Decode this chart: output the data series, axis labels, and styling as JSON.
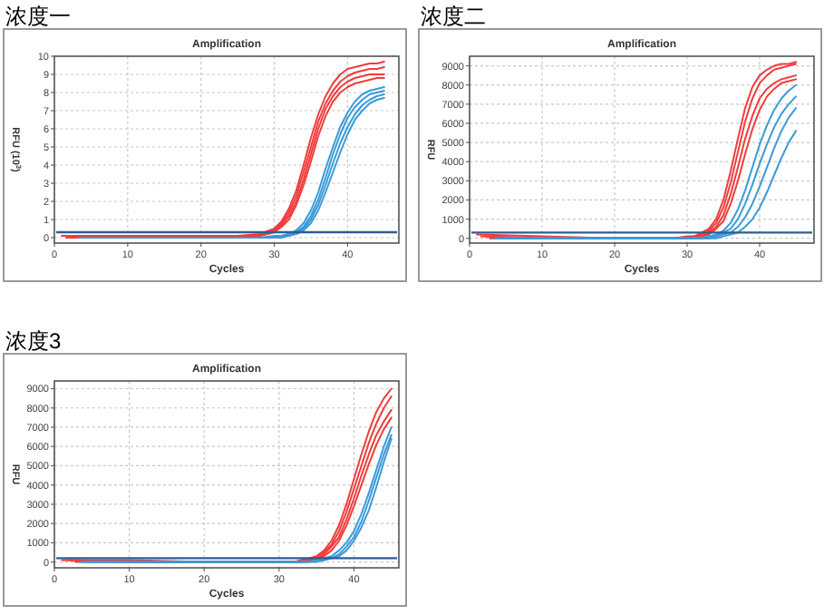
{
  "chart_data": [
    {
      "type": "line",
      "title": "浓度一",
      "subtitle": "Amplification",
      "xlabel": "Cycles",
      "ylabel": "RFU (10$^{3}$)",
      "xlim": [
        0,
        47
      ],
      "ylim": [
        -0.3,
        10
      ],
      "xticks": [
        0,
        10,
        20,
        30,
        40
      ],
      "yticks": [
        0,
        1,
        2,
        3,
        4,
        5,
        6,
        7,
        8,
        9,
        10
      ],
      "grid": true,
      "ref_lines": [
        {
          "axis": "y",
          "value": 0.3,
          "color": "#2e5c94"
        }
      ],
      "series": [
        {
          "color": "#f03c3c",
          "x": [
            1,
            10,
            20,
            25,
            28,
            30,
            31,
            32,
            33,
            34,
            35,
            36,
            37,
            38,
            39,
            40,
            41,
            42,
            43,
            44,
            45
          ],
          "values": [
            0.1,
            0.1,
            0.1,
            0.1,
            0.2,
            0.5,
            0.9,
            1.6,
            2.6,
            4.0,
            5.5,
            6.8,
            7.8,
            8.5,
            9.0,
            9.3,
            9.4,
            9.5,
            9.6,
            9.6,
            9.7
          ]
        },
        {
          "color": "#f03c3c",
          "x": [
            1.6,
            10,
            20,
            25,
            28,
            30,
            31,
            32,
            33,
            34,
            35,
            36,
            37,
            38,
            39,
            40,
            41,
            42,
            43,
            44,
            45
          ],
          "values": [
            0,
            0,
            0,
            0.1,
            0.1,
            0.4,
            0.8,
            1.4,
            2.3,
            3.6,
            5.0,
            6.4,
            7.4,
            8.1,
            8.6,
            8.9,
            9.1,
            9.2,
            9.3,
            9.3,
            9.4
          ]
        },
        {
          "color": "#f03c3c",
          "x": [
            2.2,
            10,
            20,
            25,
            28,
            30,
            31,
            32,
            33,
            34,
            35,
            36,
            37,
            38,
            39,
            40,
            41,
            42,
            43,
            44,
            45
          ],
          "values": [
            0,
            0,
            0,
            0,
            0.1,
            0.3,
            0.7,
            1.2,
            2.0,
            3.2,
            4.6,
            6.0,
            7.1,
            7.8,
            8.3,
            8.6,
            8.8,
            8.9,
            9.0,
            9.0,
            9.0
          ]
        },
        {
          "color": "#f03c3c",
          "x": [
            2.8,
            10,
            20,
            25,
            28,
            30,
            31,
            32,
            33,
            34,
            35,
            36,
            37,
            38,
            39,
            40,
            41,
            42,
            43,
            44,
            45
          ],
          "values": [
            0,
            0,
            0,
            0,
            0.1,
            0.3,
            0.6,
            1.0,
            1.8,
            2.9,
            4.2,
            5.6,
            6.7,
            7.5,
            8.0,
            8.3,
            8.5,
            8.6,
            8.7,
            8.8,
            8.8
          ]
        },
        {
          "color": "#3a9ad9",
          "x": [
            3.4,
            10,
            20,
            25,
            28,
            30,
            31,
            32,
            33,
            34,
            35,
            36,
            37,
            38,
            39,
            40,
            41,
            42,
            43,
            44,
            45
          ],
          "values": [
            0,
            0,
            0,
            0,
            0,
            0.1,
            0.1,
            0.2,
            0.4,
            0.8,
            1.5,
            2.5,
            3.8,
            5.0,
            6.1,
            6.9,
            7.5,
            7.9,
            8.1,
            8.2,
            8.3
          ]
        },
        {
          "color": "#3a9ad9",
          "x": [
            4,
            10,
            20,
            25,
            28,
            30,
            31,
            32,
            33,
            34,
            35,
            36,
            37,
            38,
            39,
            40,
            41,
            42,
            43,
            44,
            45
          ],
          "values": [
            0,
            0,
            0,
            0,
            0,
            0,
            0.1,
            0.2,
            0.3,
            0.6,
            1.2,
            2.1,
            3.3,
            4.6,
            5.7,
            6.6,
            7.2,
            7.6,
            7.9,
            8.0,
            8.1
          ]
        },
        {
          "color": "#3a9ad9",
          "x": [
            4.6,
            10,
            20,
            25,
            28,
            30,
            31,
            32,
            33,
            34,
            35,
            36,
            37,
            38,
            39,
            40,
            41,
            42,
            43,
            44,
            45
          ],
          "values": [
            0,
            0,
            0,
            0,
            0,
            0,
            0.1,
            0.1,
            0.3,
            0.5,
            1.0,
            1.8,
            2.9,
            4.1,
            5.2,
            6.1,
            6.8,
            7.3,
            7.6,
            7.8,
            7.9
          ]
        },
        {
          "color": "#3a9ad9",
          "x": [
            5.2,
            10,
            20,
            25,
            28,
            30,
            31,
            32,
            33,
            34,
            35,
            36,
            37,
            38,
            39,
            40,
            41,
            42,
            43,
            44,
            45
          ],
          "values": [
            0,
            0,
            0,
            0,
            0,
            0,
            0,
            0.1,
            0.2,
            0.4,
            0.8,
            1.5,
            2.5,
            3.6,
            4.7,
            5.7,
            6.5,
            7.0,
            7.4,
            7.6,
            7.7
          ]
        }
      ]
    },
    {
      "type": "line",
      "title": "浓度二",
      "subtitle": "Amplification",
      "xlabel": "Cycles",
      "ylabel": "RFU",
      "xlim": [
        0,
        47.5
      ],
      "ylim": [
        -250,
        9500
      ],
      "xticks": [
        0,
        10,
        20,
        30,
        40
      ],
      "yticks": [
        0,
        1000,
        2000,
        3000,
        4000,
        5000,
        6000,
        7000,
        8000,
        9000
      ],
      "grid": true,
      "ref_lines": [
        {
          "axis": "y",
          "value": 300,
          "color": "#2e5c94"
        }
      ],
      "series": [
        {
          "color": "#f03c3c",
          "x": [
            1,
            10,
            20,
            25,
            28,
            30,
            31,
            32,
            33,
            34,
            35,
            36,
            37,
            38,
            39,
            40,
            41,
            42,
            43,
            44,
            45
          ],
          "values": [
            200,
            100,
            0,
            0,
            0,
            100,
            100,
            300,
            500,
            1000,
            2000,
            3500,
            5200,
            6800,
            7900,
            8500,
            8800,
            9000,
            9100,
            9100,
            9200
          ]
        },
        {
          "color": "#f03c3c",
          "x": [
            1.6,
            10,
            20,
            25,
            28,
            30,
            31,
            32,
            33,
            34,
            35,
            36,
            37,
            38,
            39,
            40,
            41,
            42,
            43,
            44,
            45
          ],
          "values": [
            100,
            0,
            0,
            0,
            0,
            0,
            100,
            200,
            400,
            800,
            1600,
            2900,
            4500,
            6100,
            7300,
            8100,
            8500,
            8800,
            8900,
            9000,
            9100
          ]
        },
        {
          "color": "#f03c3c",
          "x": [
            2.2,
            10,
            20,
            25,
            28,
            30,
            31,
            32,
            33,
            34,
            35,
            36,
            37,
            38,
            39,
            40,
            41,
            42,
            43,
            44,
            45
          ],
          "values": [
            100,
            0,
            0,
            0,
            0,
            0,
            100,
            100,
            300,
            600,
            1200,
            2300,
            3700,
            5200,
            6400,
            7300,
            7800,
            8100,
            8300,
            8400,
            8500
          ]
        },
        {
          "color": "#f03c3c",
          "x": [
            2.8,
            10,
            20,
            25,
            28,
            30,
            31,
            32,
            33,
            34,
            35,
            36,
            37,
            38,
            39,
            40,
            41,
            42,
            43,
            44,
            45
          ],
          "values": [
            0,
            0,
            0,
            0,
            0,
            0,
            0,
            100,
            200,
            500,
            900,
            1800,
            3000,
            4400,
            5700,
            6700,
            7400,
            7800,
            8100,
            8200,
            8300
          ]
        },
        {
          "color": "#3a9ad9",
          "x": [
            3.4,
            10,
            20,
            25,
            28,
            30,
            31,
            32,
            33,
            34,
            35,
            36,
            37,
            38,
            39,
            40,
            41,
            42,
            43,
            44,
            45
          ],
          "values": [
            0,
            0,
            0,
            0,
            0,
            0,
            0,
            0,
            100,
            200,
            400,
            800,
            1500,
            2500,
            3700,
            4900,
            5900,
            6700,
            7300,
            7700,
            8000
          ]
        },
        {
          "color": "#3a9ad9",
          "x": [
            4,
            10,
            20,
            25,
            28,
            30,
            31,
            32,
            33,
            34,
            35,
            36,
            37,
            38,
            39,
            40,
            41,
            42,
            43,
            44,
            45
          ],
          "values": [
            0,
            0,
            0,
            0,
            0,
            0,
            0,
            0,
            100,
            100,
            300,
            500,
            1000,
            1800,
            2800,
            3900,
            4900,
            5800,
            6500,
            7000,
            7400
          ]
        },
        {
          "color": "#3a9ad9",
          "x": [
            4.6,
            10,
            20,
            25,
            28,
            30,
            31,
            32,
            33,
            34,
            35,
            36,
            37,
            38,
            39,
            40,
            41,
            42,
            43,
            44,
            45
          ],
          "values": [
            0,
            0,
            0,
            0,
            0,
            0,
            0,
            0,
            0,
            100,
            200,
            300,
            600,
            1100,
            1800,
            2700,
            3700,
            4700,
            5600,
            6300,
            6800
          ]
        },
        {
          "color": "#3a9ad9",
          "x": [
            5.2,
            10,
            20,
            25,
            28,
            30,
            31,
            32,
            33,
            34,
            35,
            36,
            37,
            38,
            39,
            40,
            41,
            42,
            43,
            44,
            45
          ],
          "values": [
            0,
            0,
            0,
            0,
            0,
            0,
            0,
            0,
            0,
            0,
            100,
            200,
            300,
            600,
            1000,
            1600,
            2400,
            3300,
            4200,
            5000,
            5600
          ]
        }
      ]
    },
    {
      "type": "line",
      "title": "浓度3",
      "subtitle": "Amplification",
      "xlabel": "Cycles",
      "ylabel": "RFU",
      "xlim": [
        0,
        46
      ],
      "ylim": [
        -300,
        9400
      ],
      "xticks": [
        0,
        10,
        20,
        30,
        40
      ],
      "yticks": [
        0,
        1000,
        2000,
        3000,
        4000,
        5000,
        6000,
        7000,
        8000,
        9000
      ],
      "grid": true,
      "ref_lines": [
        {
          "axis": "y",
          "value": 200,
          "color": "#2e5c94"
        }
      ],
      "series": [
        {
          "color": "#f03c3c",
          "x": [
            1,
            10,
            20,
            25,
            28,
            30,
            31,
            32,
            33,
            34,
            35,
            36,
            37,
            38,
            39,
            40,
            41,
            42,
            43,
            44,
            45
          ],
          "values": [
            100,
            100,
            0,
            0,
            0,
            0,
            0,
            0,
            100,
            200,
            300,
            600,
            1100,
            1900,
            3000,
            4300,
            5600,
            6800,
            7800,
            8500,
            9000
          ]
        },
        {
          "color": "#f03c3c",
          "x": [
            1.6,
            10,
            20,
            25,
            28,
            30,
            31,
            32,
            33,
            34,
            35,
            36,
            37,
            38,
            39,
            40,
            41,
            42,
            43,
            44,
            45
          ],
          "values": [
            100,
            0,
            0,
            0,
            0,
            0,
            0,
            0,
            100,
            100,
            200,
            500,
            900,
            1600,
            2600,
            3800,
            5000,
            6200,
            7200,
            8000,
            8600
          ]
        },
        {
          "color": "#f03c3c",
          "x": [
            2.2,
            10,
            20,
            25,
            28,
            30,
            31,
            32,
            33,
            34,
            35,
            36,
            37,
            38,
            39,
            40,
            41,
            42,
            43,
            44,
            45
          ],
          "values": [
            100,
            0,
            0,
            0,
            0,
            0,
            0,
            0,
            0,
            100,
            200,
            400,
            800,
            1300,
            2200,
            3300,
            4500,
            5600,
            6600,
            7300,
            7900
          ]
        },
        {
          "color": "#f03c3c",
          "x": [
            2.8,
            10,
            20,
            25,
            28,
            30,
            31,
            32,
            33,
            34,
            35,
            36,
            37,
            38,
            39,
            40,
            41,
            42,
            43,
            44,
            45
          ],
          "values": [
            0,
            0,
            0,
            0,
            0,
            0,
            0,
            0,
            0,
            100,
            200,
            300,
            600,
            1100,
            1900,
            2900,
            4000,
            5100,
            6100,
            6900,
            7500
          ]
        },
        {
          "color": "#3a9ad9",
          "x": [
            3.4,
            10,
            20,
            25,
            28,
            30,
            31,
            32,
            33,
            34,
            35,
            36,
            37,
            38,
            39,
            40,
            41,
            42,
            43,
            44,
            45
          ],
          "values": [
            0,
            0,
            0,
            0,
            0,
            0,
            0,
            0,
            0,
            0,
            100,
            200,
            300,
            600,
            1000,
            1600,
            2500,
            3600,
            4800,
            6000,
            7000
          ]
        },
        {
          "color": "#3a9ad9",
          "x": [
            4,
            10,
            20,
            25,
            28,
            30,
            31,
            32,
            33,
            34,
            35,
            36,
            37,
            38,
            39,
            40,
            41,
            42,
            43,
            44,
            45
          ],
          "values": [
            0,
            0,
            0,
            0,
            0,
            0,
            0,
            0,
            0,
            0,
            100,
            100,
            200,
            400,
            800,
            1300,
            2100,
            3200,
            4400,
            5600,
            6600
          ]
        },
        {
          "color": "#3a9ad9",
          "x": [
            4.6,
            10,
            20,
            25,
            28,
            30,
            31,
            32,
            33,
            34,
            35,
            36,
            37,
            38,
            39,
            40,
            41,
            42,
            43,
            44,
            45
          ],
          "values": [
            0,
            0,
            0,
            0,
            0,
            0,
            0,
            0,
            0,
            0,
            0,
            100,
            200,
            300,
            600,
            1100,
            1800,
            2700,
            3900,
            5200,
            6400
          ]
        }
      ]
    }
  ]
}
